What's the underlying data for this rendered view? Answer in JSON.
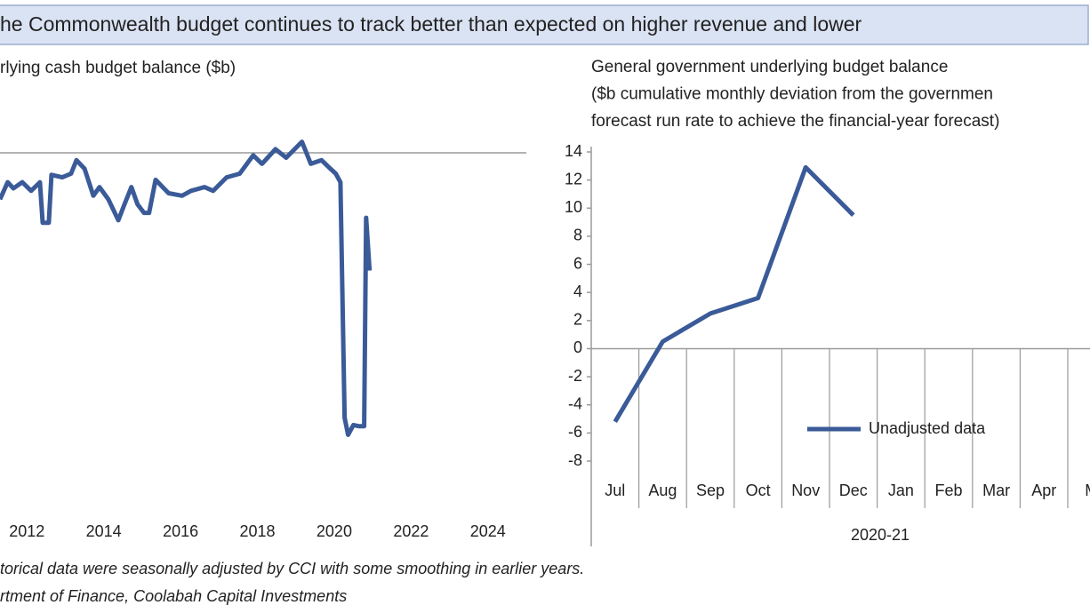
{
  "title": "he Commonwealth budget continues to track better than expected on higher revenue and lower",
  "footnotes": [
    "torical data were seasonally adjusted by CCI with some smoothing in earlier years.",
    "rtment of Finance, Coolabah Capital Investments"
  ],
  "chart_data": [
    {
      "type": "line",
      "title": "rlying cash budget balance ($b)",
      "color": "#3a5a98",
      "x": [
        2011.3,
        2011.5,
        2011.65,
        2011.88,
        2012.11,
        2012.34,
        2012.41,
        2012.57,
        2012.64,
        2012.92,
        2013.15,
        2013.29,
        2013.5,
        2013.73,
        2013.89,
        2014.12,
        2014.38,
        2014.54,
        2014.72,
        2014.88,
        2015.05,
        2015.18,
        2015.35,
        2015.69,
        2016.04,
        2016.27,
        2016.62,
        2016.85,
        2017.2,
        2017.54,
        2017.89,
        2018.12,
        2018.47,
        2018.75,
        2019.16,
        2019.39,
        2019.67,
        2019.9,
        2020.04,
        2020.16,
        2020.27,
        2020.36,
        2020.5,
        2020.64,
        2020.78,
        2020.83,
        2020.92
      ],
      "values": [
        -38,
        -24,
        -29,
        -24,
        -31,
        -24,
        -57,
        -57,
        -18,
        -20,
        -17,
        -6,
        -13,
        -35,
        -28,
        -38,
        -55,
        -42,
        -28,
        -42,
        -49,
        -49,
        -22,
        -33,
        -35,
        -31,
        -28,
        -31,
        -20,
        -17,
        -2,
        -9,
        3,
        -4,
        9,
        -9,
        -6,
        -13,
        -17,
        -24,
        -216,
        -230,
        -222,
        -223,
        -223,
        -53,
        -96
      ],
      "xlim": [
        2011.3,
        2025
      ],
      "xticks": [
        2012,
        2014,
        2016,
        2018,
        2020,
        2022,
        2024
      ],
      "ylim": [
        -250,
        50
      ]
    },
    {
      "type": "line",
      "title": [
        "General government underlying budget balance",
        "($b cumulative monthly deviation from the governmen",
        "forecast run rate to achieve the financial-year forecast)"
      ],
      "categories": [
        "Jul",
        "Aug",
        "Sep",
        "Oct",
        "Nov",
        "Dec",
        "Jan",
        "Feb",
        "Mar",
        "Apr",
        "M"
      ],
      "series": [
        {
          "name": "Unadjusted data",
          "color": "#3a5a98",
          "values": [
            -5.2,
            0.5,
            2.5,
            3.6,
            12.9,
            9.5,
            null,
            null,
            null,
            null,
            null
          ]
        }
      ],
      "ylim": [
        -8,
        14
      ],
      "yticks": [
        14,
        12,
        10,
        8,
        6,
        4,
        2,
        0,
        -2,
        -4,
        -6,
        -8
      ],
      "x_label": "2020-21",
      "legend": "lower-right"
    }
  ]
}
